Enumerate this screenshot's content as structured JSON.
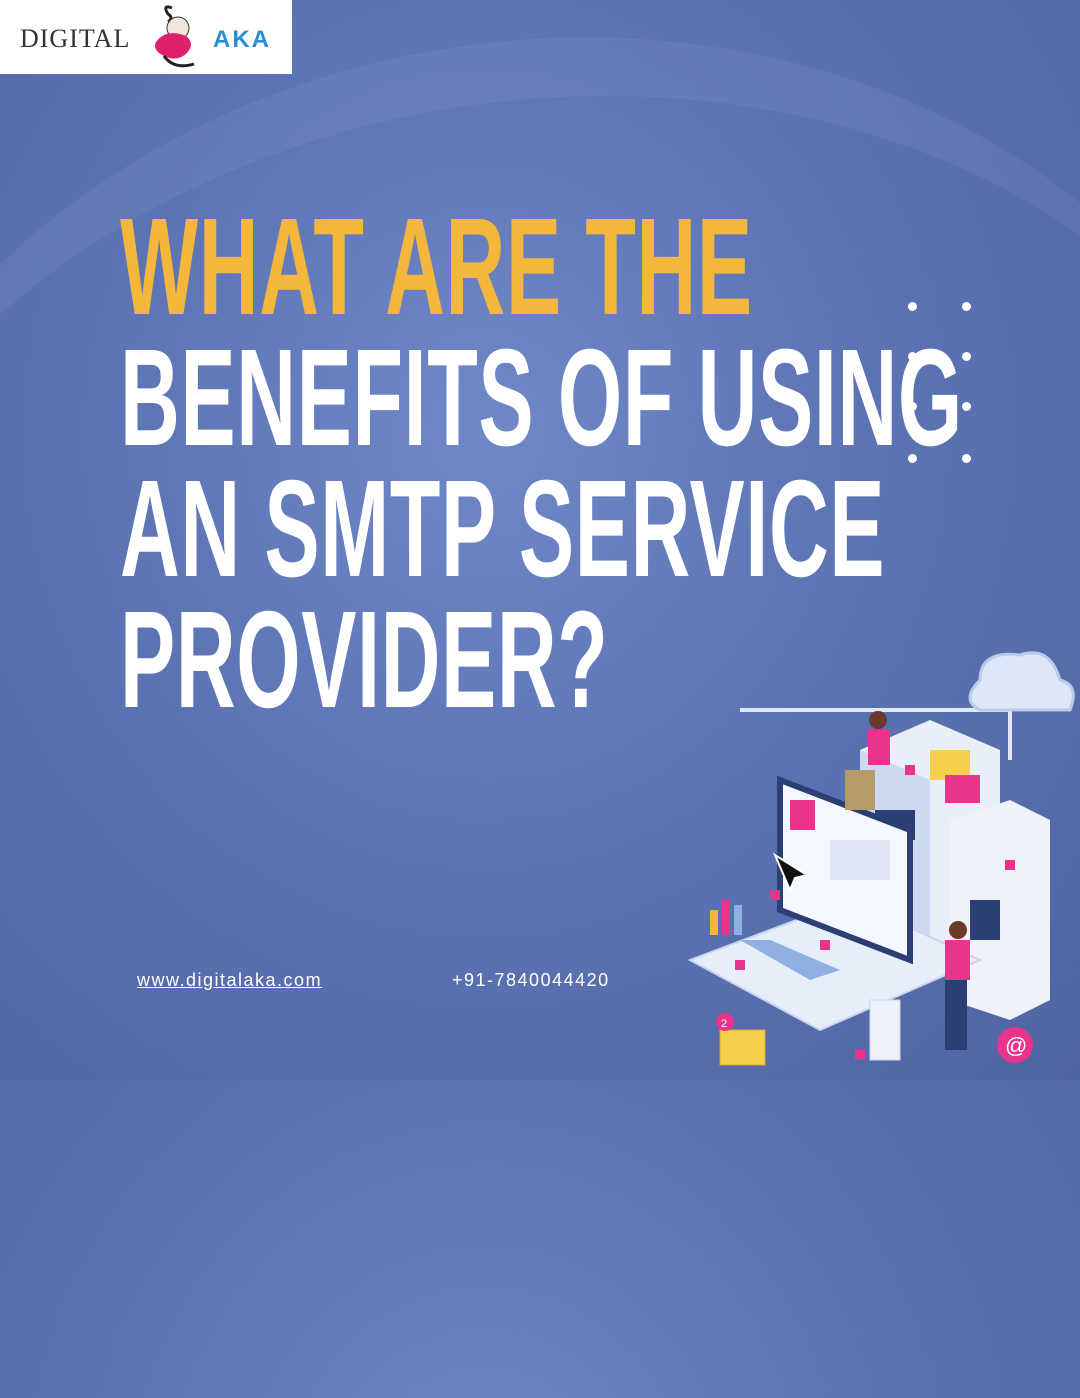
{
  "logo": {
    "text_left": "DIGITAL",
    "text_right": "AKA"
  },
  "title": {
    "lines": [
      {
        "text": "WHAT ARE THE",
        "color": "#f5b73b"
      },
      {
        "text": "BENEFITS OF USING",
        "color": "#ffffff"
      },
      {
        "text": "AN SMTP SERVICE",
        "color": "#ffffff"
      },
      {
        "text": "PROVIDER?",
        "color": "#ffffff"
      }
    ]
  },
  "footer": {
    "website": "www.digitalaka.com",
    "phone": "+91-7840044420"
  },
  "illustration": {
    "name": "isometric-server-laptop-illustration",
    "badge": "2"
  },
  "colors": {
    "background": "#5d74b4",
    "accent": "#f5b73b",
    "pink": "#e8348a"
  }
}
